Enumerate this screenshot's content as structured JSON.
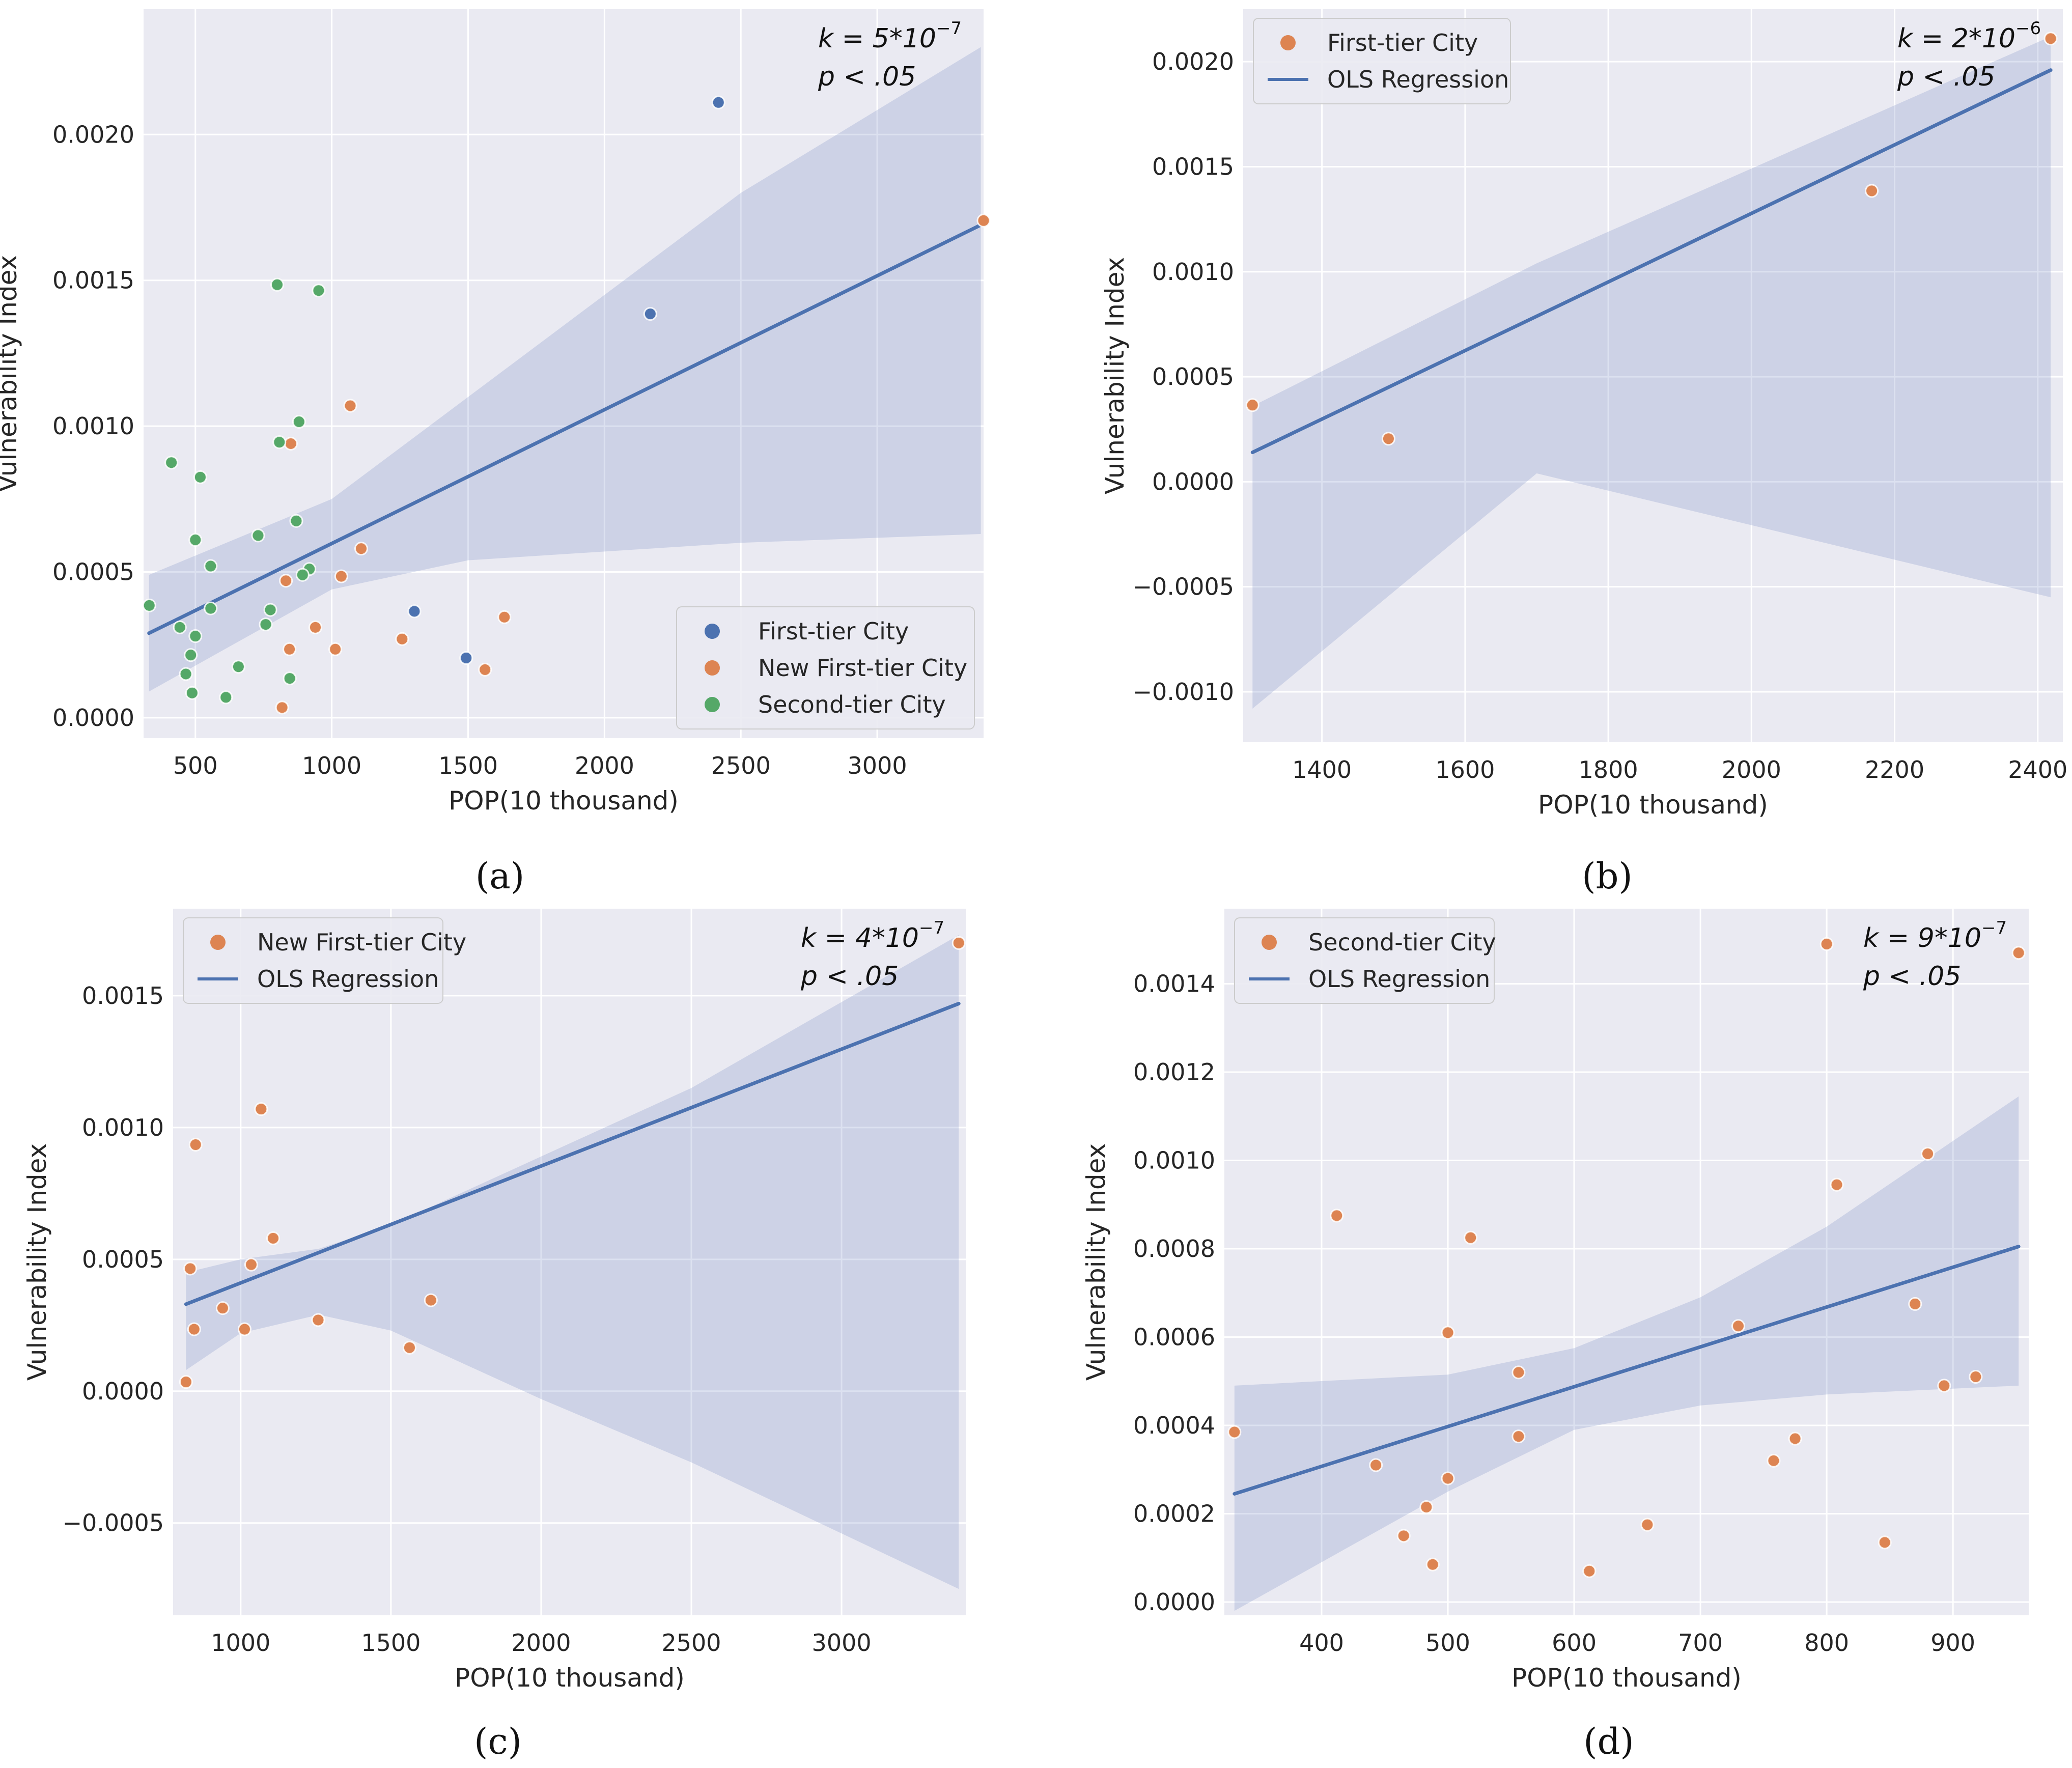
{
  "figure": {
    "background": "#ffffff",
    "plot_bg": "#eaeaf2",
    "grid": "#ffffff",
    "ci_color": "#8094c8",
    "line_color": "#4c72b0"
  },
  "chart_data": [
    {
      "id": "a",
      "type": "scatter",
      "panel_label": "(a)",
      "xlabel": "POP(10 thousand)",
      "ylabel": "Vulnerability Index",
      "xlim": [
        310,
        3390
      ],
      "ylim": [
        -7e-05,
        0.00243
      ],
      "xticks": [
        500,
        1000,
        1500,
        2000,
        2500,
        3000
      ],
      "xtick_labels": [
        "500",
        "1000",
        "1500",
        "2000",
        "2500",
        "3000"
      ],
      "yticks": [
        0,
        0.0005,
        0.001,
        0.0015,
        0.002
      ],
      "ytick_labels": [
        "0.0000",
        "0.0005",
        "0.0010",
        "0.0015",
        "0.0020"
      ],
      "annotation": {
        "k_prefix": "k = 5*10",
        "k_exp": "−7",
        "p_text": "p < .05"
      },
      "legend": {
        "position": "lower-right",
        "kind": "markers",
        "entries": [
          {
            "label": "First-tier City",
            "color": "#4c72b0"
          },
          {
            "label": "New First-tier City",
            "color": "#dd8452"
          },
          {
            "label": "Second-tier City",
            "color": "#55a868"
          }
        ]
      },
      "regression": {
        "x": [
          330,
          3380
        ],
        "y": [
          0.00029,
          0.00169
        ]
      },
      "ci_band": {
        "x": [
          330,
          1000,
          1500,
          2500,
          3380
        ],
        "upper": [
          0.00049,
          0.00075,
          0.0011,
          0.0018,
          0.0023
        ],
        "lower": [
          9e-05,
          0.00044,
          0.00054,
          0.0006,
          0.00063
        ]
      },
      "series": [
        {
          "name": "First-tier City",
          "color": "#4c72b0",
          "x": [
            2418,
            2168,
            1303,
            1493
          ],
          "y": [
            0.00211,
            0.001385,
            0.000365,
            0.000205
          ]
        },
        {
          "name": "New First-tier City",
          "color": "#dd8452",
          "x": [
            3390,
            1068,
            850,
            1108,
            1035,
            832,
            940,
            845,
            1258,
            1013,
            1633,
            1562,
            818
          ],
          "y": [
            0.001705,
            0.00107,
            0.00094,
            0.00058,
            0.000485,
            0.00047,
            0.00031,
            0.000235,
            0.00027,
            0.000235,
            0.000345,
            0.000165,
            3.5e-05
          ]
        },
        {
          "name": "Second-tier City",
          "color": "#55a868",
          "x": [
            800,
            952,
            880,
            808,
            412,
            518,
            500,
            556,
            730,
            870,
            918,
            893,
            331,
            556,
            775,
            758,
            443,
            500,
            658,
            483,
            465,
            846,
            488,
            612
          ],
          "y": [
            0.001485,
            0.001465,
            0.001015,
            0.000945,
            0.000875,
            0.000825,
            0.00061,
            0.00052,
            0.000625,
            0.000675,
            0.00051,
            0.00049,
            0.000385,
            0.000375,
            0.00037,
            0.00032,
            0.00031,
            0.00028,
            0.000175,
            0.000215,
            0.00015,
            0.000135,
            8.5e-05,
            7e-05
          ]
        }
      ]
    },
    {
      "id": "b",
      "type": "scatter",
      "panel_label": "(b)",
      "xlabel": "POP(10 thousand)",
      "ylabel": "Vulnerability Index",
      "xlim": [
        1290,
        2435
      ],
      "ylim": [
        -0.00124,
        0.00225
      ],
      "xticks": [
        1400,
        1600,
        1800,
        2000,
        2200,
        2400
      ],
      "xtick_labels": [
        "1400",
        "1600",
        "1800",
        "2000",
        "2200",
        "2400"
      ],
      "yticks": [
        -0.001,
        -0.0005,
        0,
        0.0005,
        0.001,
        0.0015,
        0.002
      ],
      "ytick_labels": [
        "−0.0010",
        "−0.0005",
        "0.0000",
        "0.0005",
        "0.0010",
        "0.0015",
        "0.0020"
      ],
      "annotation": {
        "k_prefix": "k = 2*10",
        "k_exp": "−6",
        "p_text": "p < .05"
      },
      "legend": {
        "position": "upper-left",
        "kind": "marker+line",
        "entries": [
          {
            "label": "First-tier City",
            "color": "#dd8452"
          },
          {
            "label": "OLS Regression",
            "color": "#4c72b0"
          }
        ]
      },
      "regression": {
        "x": [
          1303,
          2418
        ],
        "y": [
          0.00014,
          0.00196
        ]
      },
      "ci_band": {
        "x": [
          1303,
          1700,
          2418
        ],
        "upper": [
          0.00036,
          0.00104,
          0.00212
        ],
        "lower": [
          -0.00108,
          4e-05,
          -0.00055
        ]
      },
      "series": [
        {
          "name": "First-tier City",
          "color": "#dd8452",
          "x": [
            1303,
            1493,
            2168,
            2418
          ],
          "y": [
            0.000365,
            0.000205,
            0.001385,
            0.00211
          ]
        }
      ]
    },
    {
      "id": "c",
      "type": "scatter",
      "panel_label": "(c)",
      "xlabel": "POP(10 thousand)",
      "ylabel": "Vulnerability Index",
      "xlim": [
        775,
        3415
      ],
      "ylim": [
        -0.00085,
        0.00183
      ],
      "xticks": [
        1000,
        1500,
        2000,
        2500,
        3000
      ],
      "xtick_labels": [
        "1000",
        "1500",
        "2000",
        "2500",
        "3000"
      ],
      "yticks": [
        -0.0005,
        0,
        0.0005,
        0.001,
        0.0015
      ],
      "ytick_labels": [
        "−0.0005",
        "0.0000",
        "0.0005",
        "0.0010",
        "0.0015"
      ],
      "annotation": {
        "k_prefix": "k = 4*10",
        "k_exp": "−7",
        "p_text": "p < .05"
      },
      "legend": {
        "position": "upper-left",
        "kind": "marker+line",
        "entries": [
          {
            "label": "New First-tier City",
            "color": "#dd8452"
          },
          {
            "label": "OLS Regression",
            "color": "#4c72b0"
          }
        ]
      },
      "regression": {
        "x": [
          818,
          3390
        ],
        "y": [
          0.00033,
          0.00147
        ]
      },
      "ci_band": {
        "x": [
          818,
          1000,
          1260,
          1500,
          2000,
          2500,
          3390
        ],
        "upper": [
          0.00045,
          0.0005,
          0.00054,
          0.00063,
          0.00089,
          0.00115,
          0.00173
        ],
        "lower": [
          8e-05,
          0.00022,
          0.00029,
          0.00023,
          -3e-05,
          -0.00027,
          -0.00075
        ]
      },
      "series": [
        {
          "name": "New First-tier City",
          "color": "#dd8452",
          "x": [
            3390,
            1068,
            850,
            1108,
            1035,
            832,
            940,
            845,
            1258,
            1013,
            1633,
            1562,
            818
          ],
          "y": [
            0.0017,
            0.00107,
            0.000935,
            0.00058,
            0.00048,
            0.000465,
            0.000315,
            0.000235,
            0.00027,
            0.000235,
            0.000345,
            0.000165,
            3.5e-05
          ]
        }
      ]
    },
    {
      "id": "d",
      "type": "scatter",
      "panel_label": "(d)",
      "xlabel": "POP(10 thousand)",
      "ylabel": "Vulnerability Index",
      "xlim": [
        323,
        960
      ],
      "ylim": [
        -3e-05,
        0.00157
      ],
      "xticks": [
        400,
        500,
        600,
        700,
        800,
        900
      ],
      "xtick_labels": [
        "400",
        "500",
        "600",
        "700",
        "800",
        "900"
      ],
      "yticks": [
        0,
        0.0002,
        0.0004,
        0.0006,
        0.0008,
        0.001,
        0.0012,
        0.0014
      ],
      "ytick_labels": [
        "0.0000",
        "0.0002",
        "0.0004",
        "0.0006",
        "0.0008",
        "0.0010",
        "0.0012",
        "0.0014"
      ],
      "annotation": {
        "k_prefix": "k = 9*10",
        "k_exp": "−7",
        "p_text": "p < .05"
      },
      "legend": {
        "position": "upper-left",
        "kind": "marker+line",
        "entries": [
          {
            "label": "Second-tier City",
            "color": "#dd8452"
          },
          {
            "label": "OLS Regression",
            "color": "#4c72b0"
          }
        ]
      },
      "regression": {
        "x": [
          331,
          952
        ],
        "y": [
          0.000245,
          0.000805
        ]
      },
      "ci_band": {
        "x": [
          331,
          500,
          600,
          700,
          800,
          952
        ],
        "upper": [
          0.00049,
          0.000515,
          0.000575,
          0.00069,
          0.00085,
          0.001145
        ],
        "lower": [
          -2e-05,
          0.00025,
          0.00039,
          0.000445,
          0.00047,
          0.00049
        ]
      },
      "series": [
        {
          "name": "Second-tier City",
          "color": "#dd8452",
          "x": [
            800,
            952,
            880,
            808,
            412,
            518,
            500,
            556,
            730,
            870,
            918,
            893,
            331,
            556,
            775,
            758,
            443,
            500,
            658,
            483,
            465,
            846,
            488,
            612
          ],
          "y": [
            0.00149,
            0.00147,
            0.001015,
            0.000945,
            0.000875,
            0.000825,
            0.00061,
            0.00052,
            0.000625,
            0.000675,
            0.00051,
            0.00049,
            0.000385,
            0.000375,
            0.00037,
            0.00032,
            0.00031,
            0.00028,
            0.000175,
            0.000215,
            0.00015,
            0.000135,
            8.5e-05,
            7e-05
          ]
        }
      ]
    }
  ]
}
